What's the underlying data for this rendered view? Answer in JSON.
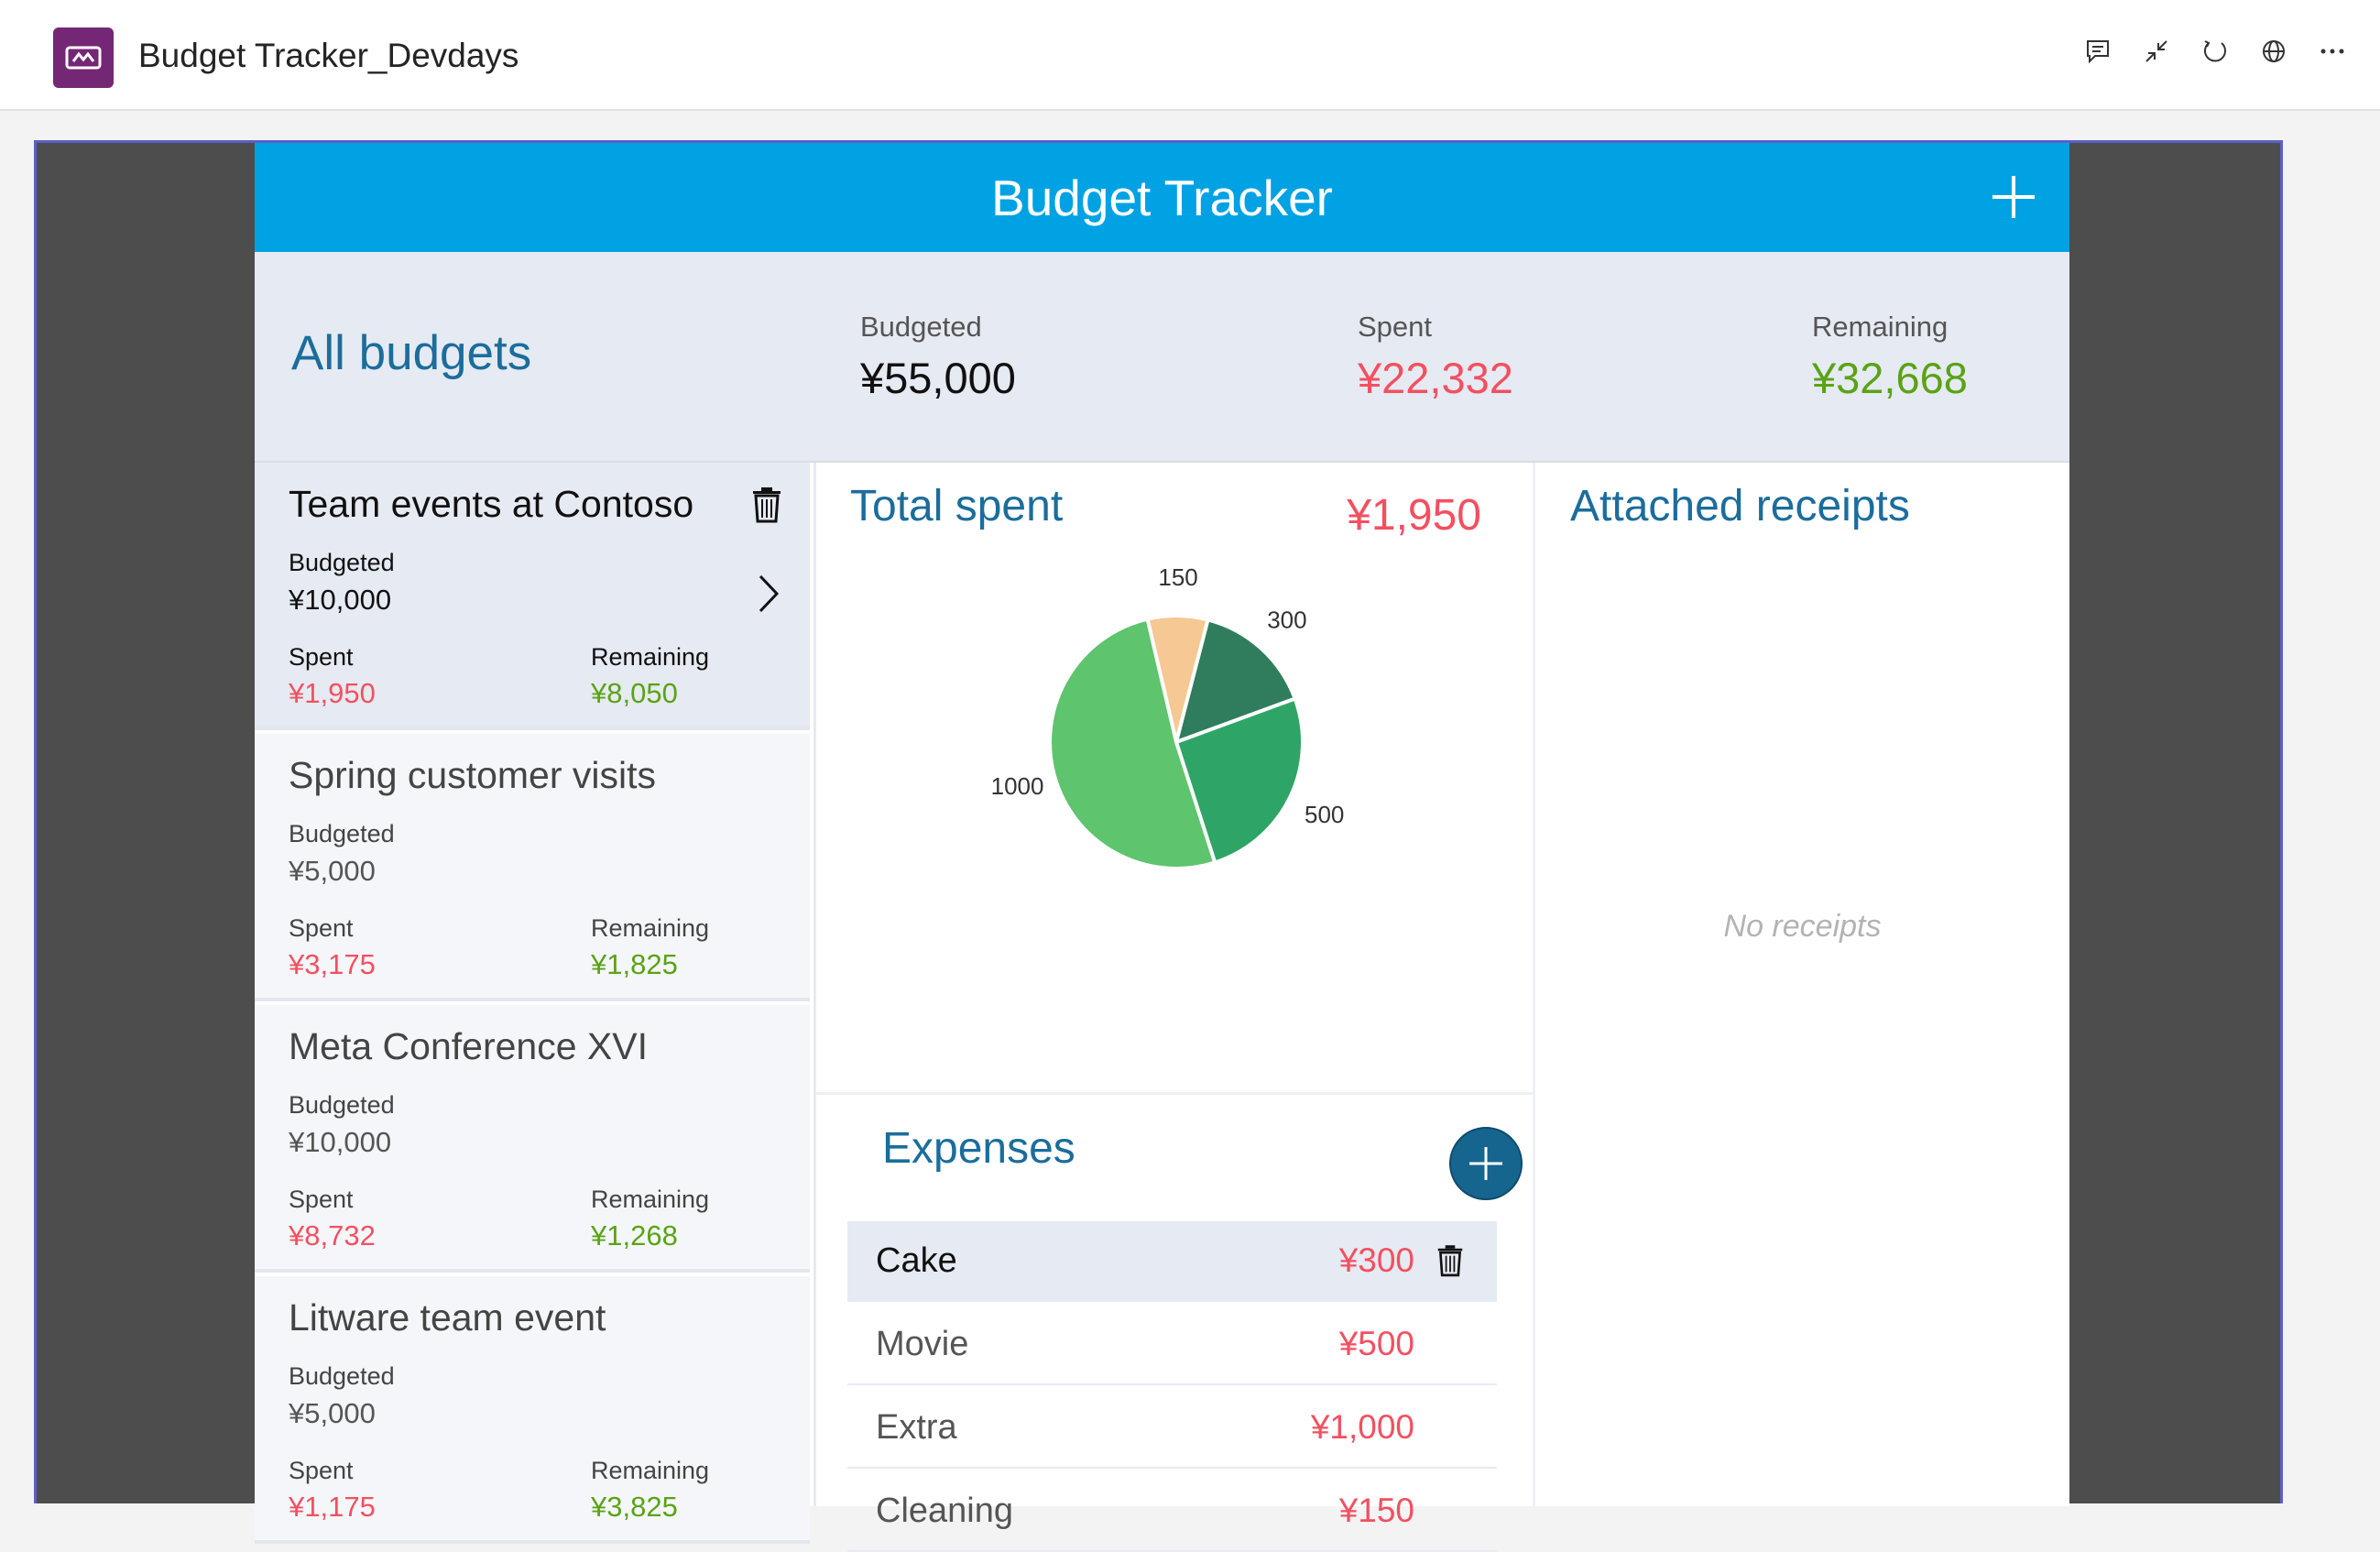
{
  "app": {
    "title": "Budget Tracker_Devdays"
  },
  "top_actions": [
    "chat-icon",
    "collapse-icon",
    "refresh-icon",
    "globe-icon",
    "more-icon"
  ],
  "header": {
    "title": "Budget Tracker"
  },
  "summary": {
    "heading": "All budgets",
    "budgeted_label": "Budgeted",
    "budgeted_value": "¥55,000",
    "spent_label": "Spent",
    "spent_value": "¥22,332",
    "remaining_label": "Remaining",
    "remaining_value": "¥32,668"
  },
  "budgets": [
    {
      "name": "Team events at Contoso",
      "budgeted_label": "Budgeted",
      "budgeted": "¥10,000",
      "spent_label": "Spent",
      "spent": "¥1,950",
      "remaining_label": "Remaining",
      "remaining": "¥8,050"
    },
    {
      "name": "Spring customer visits",
      "budgeted_label": "Budgeted",
      "budgeted": "¥5,000",
      "spent_label": "Spent",
      "spent": "¥3,175",
      "remaining_label": "Remaining",
      "remaining": "¥1,825"
    },
    {
      "name": "Meta Conference XVI",
      "budgeted_label": "Budgeted",
      "budgeted": "¥10,000",
      "spent_label": "Spent",
      "spent": "¥8,732",
      "remaining_label": "Remaining",
      "remaining": "¥1,268"
    },
    {
      "name": "Litware team event",
      "budgeted_label": "Budgeted",
      "budgeted": "¥5,000",
      "spent_label": "Spent",
      "spent": "¥1,175",
      "remaining_label": "Remaining",
      "remaining": "¥3,825"
    }
  ],
  "total": {
    "title": "Total spent",
    "value": "¥1,950"
  },
  "chart_data": {
    "type": "pie",
    "title": "",
    "values": [
      150,
      300,
      500,
      1000
    ],
    "slice_labels": [
      "150",
      "300",
      "500",
      "1000"
    ],
    "colors": [
      "#f6c894",
      "#2f7d5c",
      "#2ea566",
      "#5ec46d"
    ]
  },
  "expenses": {
    "title": "Expenses",
    "items": [
      {
        "name": "Cake",
        "amount": "¥300"
      },
      {
        "name": "Movie",
        "amount": "¥500"
      },
      {
        "name": "Extra",
        "amount": "¥1,000"
      },
      {
        "name": "Cleaning",
        "amount": "¥150"
      }
    ]
  },
  "receipts": {
    "title": "Attached receipts",
    "empty": "No receipts"
  }
}
